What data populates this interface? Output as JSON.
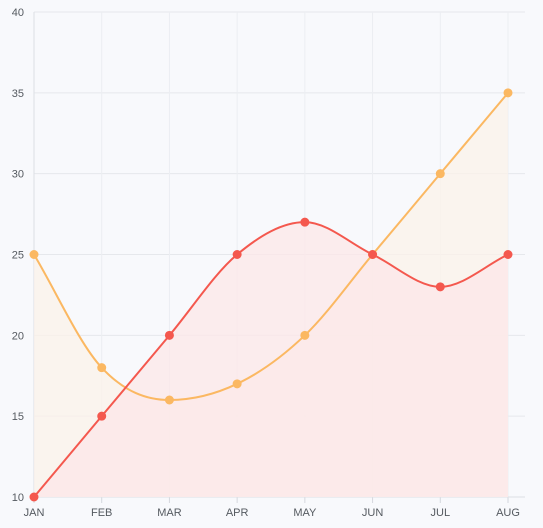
{
  "chart_data": {
    "type": "line",
    "title": "",
    "xlabel": "",
    "ylabel": "",
    "categories": [
      "JAN",
      "FEB",
      "MAR",
      "APR",
      "MAY",
      "JUN",
      "JUL",
      "AUG"
    ],
    "ylim": [
      10,
      40
    ],
    "yticks": [
      "10",
      "15",
      "20",
      "25",
      "30",
      "35",
      "40"
    ],
    "grid": true,
    "area_fill": true,
    "smooth": true,
    "series": [
      {
        "values": [
          25,
          18,
          16,
          17,
          20,
          25,
          30,
          35
        ],
        "color": "#fbb862",
        "fill": "#fbf1e9"
      },
      {
        "values": [
          10,
          15,
          20,
          25,
          27,
          25,
          23,
          25
        ],
        "color": "#f4584e",
        "fill": "#fce7e8"
      }
    ]
  }
}
